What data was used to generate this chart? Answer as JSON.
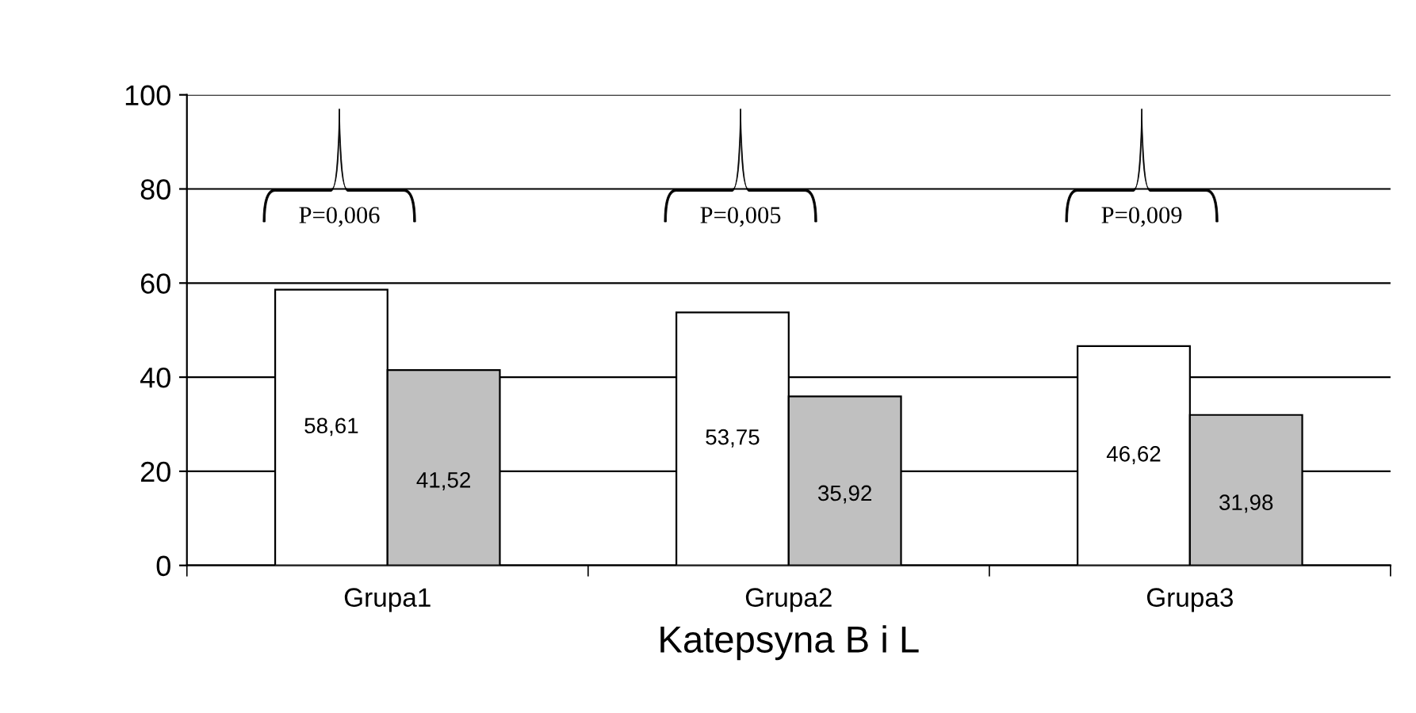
{
  "chart_data": {
    "type": "bar",
    "categories": [
      "Grupa1",
      "Grupa2",
      "Grupa3"
    ],
    "series": [
      {
        "color": "#ffffff",
        "values": [
          58.61,
          53.75,
          46.62
        ],
        "value_labels": [
          "58,61",
          "53,75",
          "46,62"
        ]
      },
      {
        "color": "#c0c0c0",
        "values": [
          41.52,
          35.92,
          31.98
        ],
        "value_labels": [
          "41,52",
          "35,92",
          "31,98"
        ]
      }
    ],
    "xlabel": "Katepsyna B i L",
    "annotations": [
      "P=0,006",
      "P=0,005",
      "P=0,009"
    ],
    "ylim": [
      0,
      100
    ],
    "yticks": [
      0,
      20,
      40,
      60,
      80,
      100
    ],
    "grid": "y"
  }
}
